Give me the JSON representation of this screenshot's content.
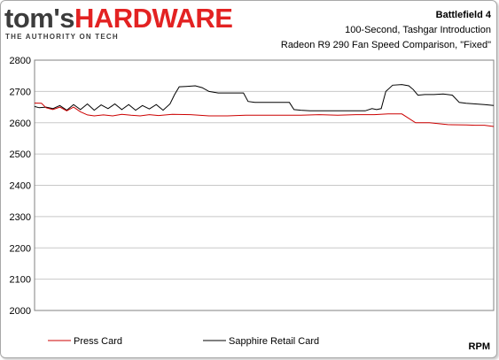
{
  "logo": {
    "brand_a": "tom's",
    "brand_b": "HARDWARE",
    "tagline": "THE AUTHORITY ON TECH",
    "brand_a_color": "#3c3c3c",
    "brand_b_color": "#e32222"
  },
  "chart_data": {
    "type": "line",
    "title": "Battlefield 4",
    "subtitle_1": "100-Second, Tashgar Introduction",
    "subtitle_2": "Radeon R9 290 Fan Speed Comparison, \"Fixed\"",
    "xlabel": "",
    "ylabel": "",
    "unit_label": "RPM",
    "ylim": [
      2000,
      2800
    ],
    "xlim": [
      0,
      100
    ],
    "y_ticks": [
      "2800",
      "2700",
      "2600",
      "2500",
      "2400",
      "2300",
      "2200",
      "2100",
      "2000"
    ],
    "grid": true,
    "legend_position": "bottom",
    "series": [
      {
        "name": "Press Card",
        "color": "#cc0000",
        "x": [
          0,
          1.5,
          2.5,
          4,
          5.5,
          7,
          8.5,
          10,
          11.5,
          13,
          15,
          17,
          19,
          21,
          23,
          25,
          27,
          30,
          34,
          38,
          42,
          46,
          50,
          54,
          58,
          62,
          66,
          70,
          74,
          77,
          80,
          83,
          86,
          90,
          94,
          96,
          98,
          100
        ],
        "values": [
          2663,
          2662,
          2648,
          2642,
          2650,
          2638,
          2650,
          2635,
          2625,
          2622,
          2625,
          2622,
          2627,
          2624,
          2622,
          2626,
          2623,
          2627,
          2626,
          2622,
          2622,
          2624,
          2624,
          2624,
          2624,
          2626,
          2624,
          2626,
          2626,
          2628,
          2628,
          2600,
          2600,
          2594,
          2593,
          2592,
          2592,
          2588
        ]
      },
      {
        "name": "Sapphire Retail Card",
        "color": "#000000",
        "x": [
          0,
          1,
          2.5,
          4,
          5.5,
          7,
          8.5,
          10,
          11.5,
          13,
          14.5,
          16,
          17.5,
          19,
          20.5,
          22,
          23.5,
          25,
          26.5,
          28,
          29.5,
          30.5,
          31.5,
          33,
          35,
          36.5,
          38,
          40,
          42,
          44,
          45.5,
          46.5,
          48,
          50,
          52,
          54,
          55.5,
          56.5,
          58,
          60,
          62,
          64,
          66,
          68,
          70,
          72,
          73.5,
          74.5,
          75.5,
          76.5,
          78,
          80,
          81.5,
          82.5,
          83.5,
          85,
          87,
          89,
          91,
          92.5,
          94,
          96,
          98,
          100
        ],
        "values": [
          2652,
          2648,
          2650,
          2645,
          2655,
          2640,
          2658,
          2642,
          2660,
          2640,
          2657,
          2645,
          2660,
          2642,
          2658,
          2640,
          2655,
          2644,
          2658,
          2640,
          2660,
          2690,
          2715,
          2716,
          2718,
          2712,
          2700,
          2695,
          2695,
          2695,
          2695,
          2668,
          2665,
          2665,
          2665,
          2665,
          2665,
          2642,
          2640,
          2638,
          2638,
          2638,
          2638,
          2638,
          2638,
          2638,
          2645,
          2642,
          2645,
          2700,
          2720,
          2722,
          2718,
          2706,
          2688,
          2690,
          2690,
          2692,
          2688,
          2665,
          2662,
          2660,
          2658,
          2655
        ]
      }
    ]
  }
}
